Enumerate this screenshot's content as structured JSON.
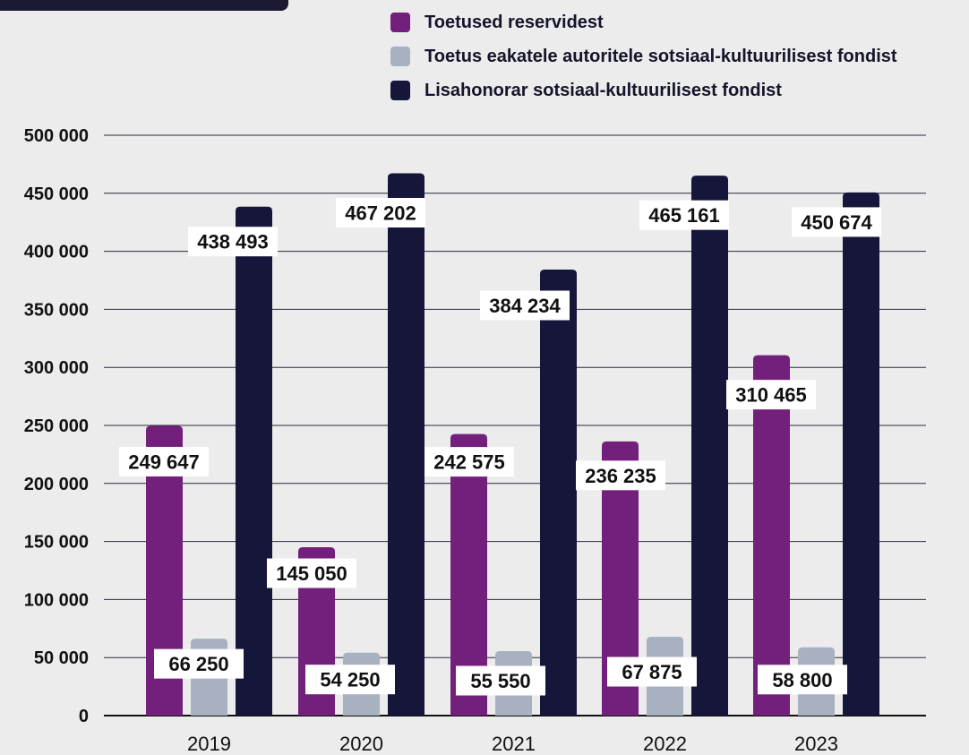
{
  "chart_data": {
    "type": "bar",
    "title": "",
    "xlabel": "",
    "ylabel": "",
    "categories": [
      "2019",
      "2020",
      "2021",
      "2022",
      "2023"
    ],
    "ylim": [
      0,
      500000
    ],
    "yticks": [
      0,
      50000,
      100000,
      150000,
      200000,
      250000,
      300000,
      350000,
      400000,
      450000,
      500000
    ],
    "ytick_labels": [
      "0",
      "50 000",
      "100 000",
      "150 000",
      "200 000",
      "250 000",
      "300 000",
      "350 000",
      "400 000",
      "450 000",
      "500 000"
    ],
    "grid": true,
    "legend_position": "top",
    "series": [
      {
        "name": "Toetused reservidest",
        "color": "#731f7c",
        "values": [
          249647,
          145050,
          242575,
          236235,
          310465
        ],
        "labels": [
          "249 647",
          "145 050",
          "242 575",
          "236 235",
          "310 465"
        ]
      },
      {
        "name": "Toetus eakatele autoritele sotsiaal-kultuurilisest fondist",
        "color": "#a8b1bf",
        "values": [
          66250,
          54250,
          55550,
          67875,
          58800
        ],
        "labels": [
          "66 250",
          "54 250",
          "55 550",
          "67 875",
          "58 800"
        ]
      },
      {
        "name": "Lisahonorar sotsiaal-kultuurilisest fondist",
        "color": "#15163a",
        "values": [
          438493,
          467202,
          384234,
          465161,
          450674
        ],
        "labels": [
          "438 493",
          "467 202",
          "384 234",
          "465 161",
          "450 674"
        ]
      }
    ]
  }
}
